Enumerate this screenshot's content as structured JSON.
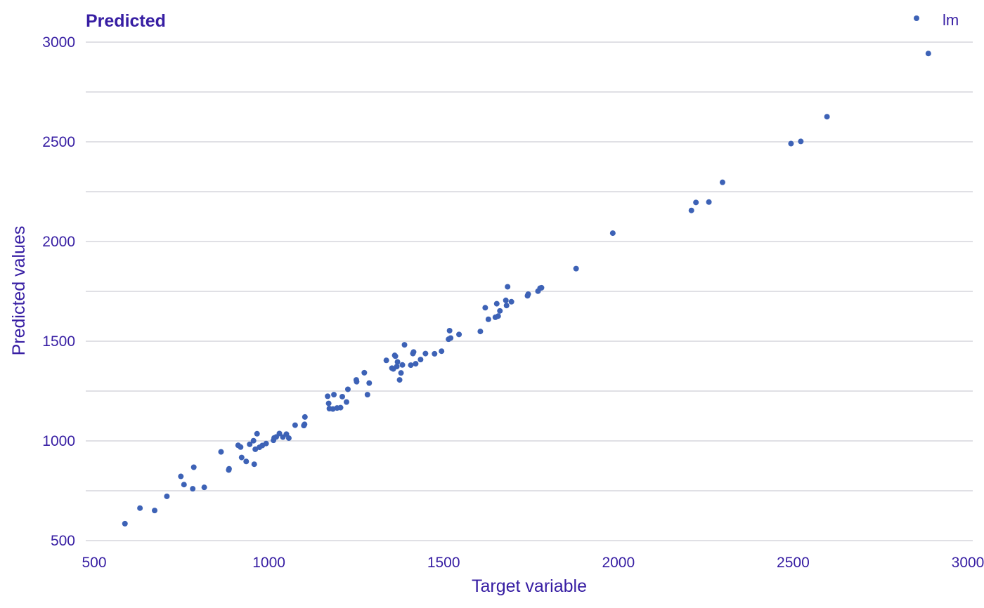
{
  "chart_data": {
    "type": "scatter",
    "title": "Predicted",
    "xlabel": "Target variable",
    "ylabel": "Predicted values",
    "xlim": [
      500,
      3000
    ],
    "ylim": [
      500,
      3000
    ],
    "x_ticks": [
      "500",
      "1000",
      "1500",
      "2000",
      "2500",
      "3000"
    ],
    "y_ticks": [
      "500",
      "1000",
      "1500",
      "2000",
      "2500",
      "3000"
    ],
    "grid": "horizontal",
    "legend": {
      "position": "top-right",
      "entries": [
        "lm"
      ]
    },
    "colors": {
      "points": "#3d62b6",
      "text": "#371ea3",
      "grid": "#e0e0e5"
    },
    "series": [
      {
        "name": "lm",
        "points": [
          [
            588,
            585
          ],
          [
            631,
            663
          ],
          [
            673,
            651
          ],
          [
            708,
            722
          ],
          [
            748,
            822
          ],
          [
            757,
            781
          ],
          [
            782,
            760
          ],
          [
            785,
            868
          ],
          [
            815,
            767
          ],
          [
            863,
            945
          ],
          [
            885,
            854
          ],
          [
            886,
            860
          ],
          [
            912,
            978
          ],
          [
            919,
            969
          ],
          [
            922,
            917
          ],
          [
            935,
            897
          ],
          [
            945,
            983
          ],
          [
            956,
            1001
          ],
          [
            958,
            883
          ],
          [
            961,
            958
          ],
          [
            966,
            1036
          ],
          [
            973,
            968
          ],
          [
            981,
            977
          ],
          [
            992,
            987
          ],
          [
            1013,
            1003
          ],
          [
            1015,
            1015
          ],
          [
            1021,
            1020
          ],
          [
            1030,
            1037
          ],
          [
            1040,
            1019
          ],
          [
            1050,
            1034
          ],
          [
            1057,
            1014
          ],
          [
            1075,
            1079
          ],
          [
            1100,
            1077
          ],
          [
            1102,
            1083
          ],
          [
            1103,
            1120
          ],
          [
            1168,
            1224
          ],
          [
            1171,
            1188
          ],
          [
            1173,
            1162
          ],
          [
            1183,
            1160
          ],
          [
            1186,
            1232
          ],
          [
            1195,
            1165
          ],
          [
            1205,
            1167
          ],
          [
            1210,
            1222
          ],
          [
            1222,
            1195
          ],
          [
            1226,
            1259
          ],
          [
            1250,
            1306
          ],
          [
            1251,
            1297
          ],
          [
            1273,
            1342
          ],
          [
            1282,
            1232
          ],
          [
            1287,
            1290
          ],
          [
            1336,
            1404
          ],
          [
            1352,
            1365
          ],
          [
            1356,
            1361
          ],
          [
            1360,
            1429
          ],
          [
            1362,
            1425
          ],
          [
            1366,
            1373
          ],
          [
            1368,
            1396
          ],
          [
            1374,
            1306
          ],
          [
            1378,
            1341
          ],
          [
            1382,
            1381
          ],
          [
            1388,
            1482
          ],
          [
            1406,
            1380
          ],
          [
            1412,
            1438
          ],
          [
            1414,
            1446
          ],
          [
            1420,
            1387
          ],
          [
            1434,
            1408
          ],
          [
            1448,
            1438
          ],
          [
            1474,
            1437
          ],
          [
            1494,
            1450
          ],
          [
            1514,
            1510
          ],
          [
            1517,
            1553
          ],
          [
            1520,
            1516
          ],
          [
            1544,
            1534
          ],
          [
            1605,
            1549
          ],
          [
            1619,
            1668
          ],
          [
            1628,
            1610
          ],
          [
            1648,
            1620
          ],
          [
            1652,
            1688
          ],
          [
            1656,
            1626
          ],
          [
            1661,
            1652
          ],
          [
            1678,
            1705
          ],
          [
            1680,
            1679
          ],
          [
            1683,
            1773
          ],
          [
            1694,
            1698
          ],
          [
            1740,
            1728
          ],
          [
            1742,
            1736
          ],
          [
            1770,
            1751
          ],
          [
            1776,
            1766
          ],
          [
            1780,
            1768
          ],
          [
            1879,
            1864
          ],
          [
            1984,
            2042
          ],
          [
            2209,
            2156
          ],
          [
            2222,
            2196
          ],
          [
            2259,
            2198
          ],
          [
            2298,
            2297
          ],
          [
            2494,
            2491
          ],
          [
            2522,
            2502
          ],
          [
            2597,
            2626
          ],
          [
            2887,
            2943
          ]
        ]
      }
    ]
  }
}
